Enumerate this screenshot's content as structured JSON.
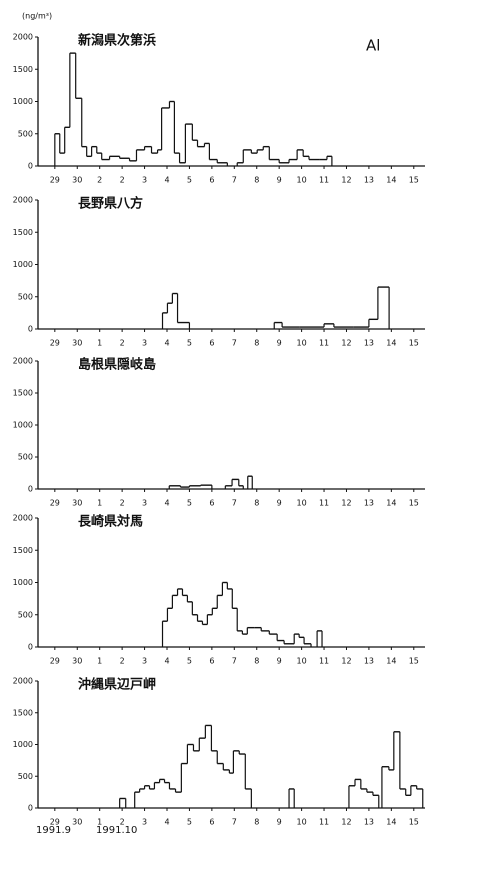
{
  "unit_label": "(ng/m³)",
  "element_label": "Al",
  "start_label": "1991.9",
  "end_label": "1991.10",
  "chart_data": [
    {
      "type": "step",
      "title": "新潟県次第浜",
      "color": "#111",
      "x": [
        0,
        0.22,
        0.44,
        0.67,
        0.93,
        1.2,
        1.42,
        1.64,
        1.87,
        2.09,
        2.44,
        2.89,
        3.33,
        3.64,
        4,
        4.31,
        4.58,
        4.76,
        5.11,
        5.33,
        5.56,
        5.82,
        6.13,
        6.36,
        6.67,
        6.89,
        7.24,
        7.69,
        8.13,
        8.4,
        8.76,
        9.02,
        9.29,
        9.56,
        10,
        10.44,
        10.8,
        11.07,
        11.33,
        11.78,
        12.13,
        12.35
      ],
      "values": [
        500,
        200,
        600,
        1750,
        1050,
        300,
        150,
        300,
        200,
        100,
        150,
        120,
        80,
        250,
        300,
        200,
        250,
        900,
        1000,
        200,
        50,
        650,
        400,
        300,
        350,
        100,
        50,
        null,
        50,
        250,
        200,
        250,
        300,
        100,
        50,
        100,
        250,
        150,
        100,
        100,
        150,
        null
      ],
      "xlim": [
        -0.75,
        16.5
      ],
      "ylim": [
        0,
        2000
      ],
      "yticks": [
        0,
        500,
        1000,
        1500,
        2000
      ],
      "xticks": [
        {
          "value": 0,
          "label": "29"
        },
        {
          "value": 1,
          "label": "30"
        },
        2,
        {
          "value": 3,
          "label": "2"
        },
        {
          "value": 4,
          "label": "3"
        },
        {
          "value": 5,
          "label": "4"
        },
        {
          "value": 6,
          "label": "5"
        },
        {
          "value": 7,
          "label": "6"
        },
        {
          "value": 8,
          "label": "7"
        },
        {
          "value": 9,
          "label": "8"
        },
        {
          "value": 10,
          "label": "9"
        },
        {
          "value": 11,
          "label": "10"
        },
        {
          "value": 12,
          "label": "11"
        },
        {
          "value": 13,
          "label": "12"
        },
        {
          "value": 14,
          "label": "13"
        },
        {
          "value": 15,
          "label": "14"
        },
        {
          "value": 16,
          "label": "15"
        }
      ]
    },
    {
      "type": "step",
      "title": "長野県八方",
      "color": "#111",
      "x": [
        4.8,
        5.02,
        5.24,
        5.47,
        5.78,
        6.0,
        9.78,
        10.13,
        10.9,
        12.0,
        12.44,
        13.33,
        14.0,
        14.4,
        14.9
      ],
      "values": [
        250,
        400,
        550,
        100,
        100,
        null,
        100,
        30,
        30,
        80,
        30,
        30,
        150,
        650,
        null
      ],
      "xlim": [
        -0.75,
        16.5
      ],
      "ylim": [
        0,
        2000
      ],
      "yticks": [
        0,
        500,
        1000,
        1500,
        2000
      ],
      "xticks": [
        {
          "value": 0,
          "label": "29"
        },
        {
          "value": 1,
          "label": "30"
        },
        {
          "value": 2,
          "label": "1"
        },
        {
          "value": 3,
          "label": "2"
        },
        {
          "value": 4,
          "label": "3"
        },
        {
          "value": 5,
          "label": "4"
        },
        {
          "value": 6,
          "label": "5"
        },
        {
          "value": 7,
          "label": "6"
        },
        {
          "value": 8,
          "label": "7"
        },
        {
          "value": 9,
          "label": "8"
        },
        {
          "value": 10,
          "label": "9"
        },
        {
          "value": 11,
          "label": "10"
        },
        {
          "value": 12,
          "label": "11"
        },
        {
          "value": 13,
          "label": "12"
        },
        {
          "value": 14,
          "label": "13"
        },
        {
          "value": 15,
          "label": "14"
        },
        {
          "value": 16,
          "label": "15"
        }
      ]
    },
    {
      "type": "step",
      "title": "島根県隠岐島",
      "color": "#111",
      "x": [
        5.1,
        5.6,
        6.0,
        6.5,
        7.0,
        7.6,
        7.9,
        8.2,
        8.4,
        8.6,
        8.8
      ],
      "values": [
        50,
        30,
        50,
        60,
        null,
        50,
        150,
        50,
        null,
        200,
        null
      ],
      "xlim": [
        -0.75,
        16.5
      ],
      "ylim": [
        0,
        2000
      ],
      "yticks": [
        0,
        500,
        1000,
        1500,
        2000
      ],
      "xticks": [
        {
          "value": 0,
          "label": "29"
        },
        {
          "value": 1,
          "label": "30"
        },
        {
          "value": 2,
          "label": "1"
        },
        {
          "value": 3,
          "label": "2"
        },
        {
          "value": 4,
          "label": "3"
        },
        {
          "value": 5,
          "label": "4"
        },
        {
          "value": 6,
          "label": "5"
        },
        {
          "value": 7,
          "label": "6"
        },
        {
          "value": 8,
          "label": "7"
        },
        {
          "value": 9,
          "label": "8"
        },
        {
          "value": 10,
          "label": "9"
        },
        {
          "value": 11,
          "label": "10"
        },
        {
          "value": 12,
          "label": "11"
        },
        {
          "value": 13,
          "label": "12"
        },
        {
          "value": 14,
          "label": "13"
        },
        {
          "value": 15,
          "label": "14"
        },
        {
          "value": 16,
          "label": "15"
        }
      ]
    },
    {
      "type": "step",
      "title": "長崎県対馬",
      "color": "#111",
      "x": [
        4.8,
        5.02,
        5.24,
        5.47,
        5.69,
        5.91,
        6.13,
        6.36,
        6.58,
        6.8,
        7.02,
        7.24,
        7.47,
        7.69,
        7.91,
        8.13,
        8.36,
        8.58,
        8.89,
        9.2,
        9.56,
        9.91,
        10.22,
        10.67,
        10.89,
        11.11,
        11.42,
        11.69,
        11.91
      ],
      "values": [
        400,
        600,
        800,
        900,
        800,
        700,
        500,
        400,
        350,
        500,
        600,
        800,
        1000,
        900,
        600,
        250,
        200,
        300,
        300,
        250,
        200,
        100,
        50,
        200,
        150,
        50,
        null,
        250,
        null
      ],
      "xlim": [
        -0.75,
        16.5
      ],
      "ylim": [
        0,
        2000
      ],
      "yticks": [
        0,
        500,
        1000,
        1500,
        2000
      ],
      "xticks": [
        {
          "value": 0,
          "label": "29"
        },
        {
          "value": 1,
          "label": "30"
        },
        {
          "value": 2,
          "label": "1"
        },
        {
          "value": 3,
          "label": "2"
        },
        {
          "value": 4,
          "label": "3"
        },
        {
          "value": 5,
          "label": "4"
        },
        {
          "value": 6,
          "label": "5"
        },
        {
          "value": 7,
          "label": "6"
        },
        {
          "value": 8,
          "label": "7"
        },
        {
          "value": 9,
          "label": "8"
        },
        {
          "value": 10,
          "label": "9"
        },
        {
          "value": 11,
          "label": "10"
        },
        {
          "value": 12,
          "label": "11"
        },
        {
          "value": 13,
          "label": "12"
        },
        {
          "value": 14,
          "label": "13"
        },
        {
          "value": 15,
          "label": "14"
        },
        {
          "value": 16,
          "label": "15"
        }
      ]
    },
    {
      "type": "step",
      "title": "沖縄県辺戸岬",
      "color": "#111",
      "x": [
        2.89,
        3.16,
        3.56,
        3.78,
        4,
        4.22,
        4.44,
        4.67,
        4.89,
        5.11,
        5.38,
        5.64,
        5.91,
        6.18,
        6.44,
        6.71,
        6.98,
        7.24,
        7.51,
        7.78,
        7.96,
        8.22,
        8.49,
        8.76,
        10.44,
        10.67,
        13.11,
        13.38,
        13.64,
        13.91,
        14.18,
        14.44,
        14.58,
        14.89,
        15.11,
        15.38,
        15.64,
        15.87,
        16.13,
        16.4
      ],
      "values": [
        150,
        null,
        250,
        300,
        350,
        300,
        400,
        450,
        400,
        300,
        250,
        700,
        1000,
        900,
        1100,
        1300,
        900,
        700,
        600,
        550,
        900,
        850,
        300,
        null,
        300,
        null,
        350,
        450,
        300,
        250,
        200,
        null,
        650,
        600,
        1200,
        300,
        200,
        350,
        300,
        null
      ],
      "xlim": [
        -0.75,
        16.5
      ],
      "ylim": [
        0,
        2000
      ],
      "yticks": [
        0,
        500,
        1000,
        1500,
        2000
      ],
      "xticks": [
        {
          "value": 0,
          "label": "29"
        },
        {
          "value": 1,
          "label": "30"
        },
        {
          "value": 2,
          "label": "1"
        },
        {
          "value": 3,
          "label": "2"
        },
        {
          "value": 4,
          "label": "3"
        },
        {
          "value": 5,
          "label": "4"
        },
        {
          "value": 6,
          "label": "5"
        },
        {
          "value": 7,
          "label": "6"
        },
        {
          "value": 8,
          "label": "7"
        },
        {
          "value": 9,
          "label": "8"
        },
        {
          "value": 10,
          "label": "9"
        },
        {
          "value": 11,
          "label": "10"
        },
        {
          "value": 12,
          "label": "11"
        },
        {
          "value": 13,
          "label": "12"
        },
        {
          "value": 14,
          "label": "13"
        },
        {
          "value": 15,
          "label": "14"
        },
        {
          "value": 16,
          "label": "15"
        }
      ]
    }
  ]
}
